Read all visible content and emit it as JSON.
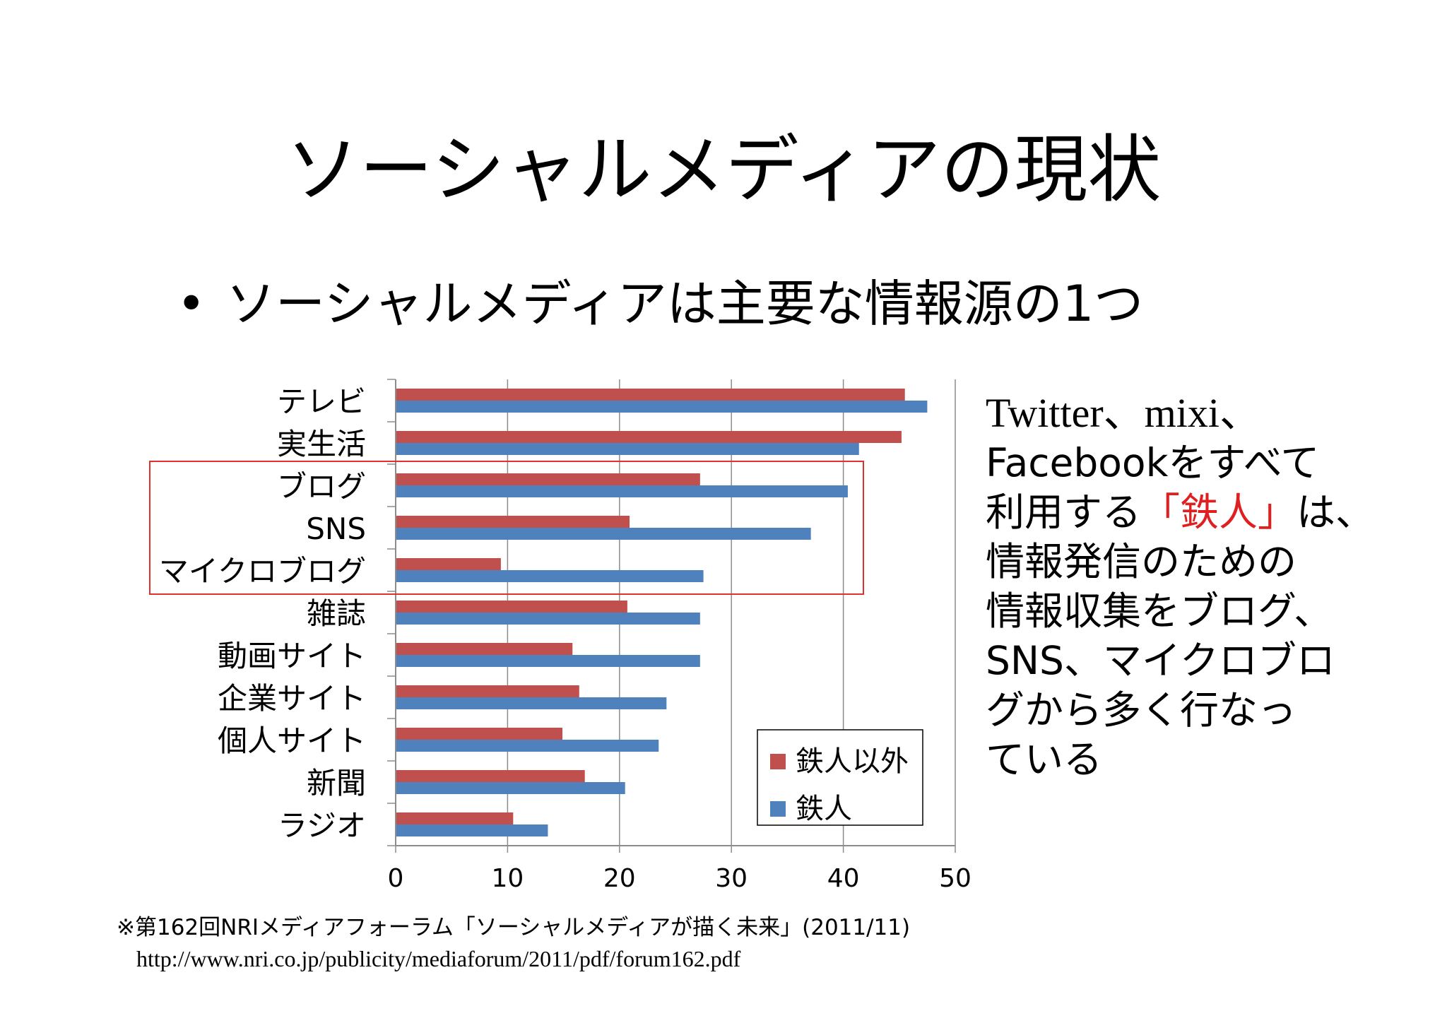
{
  "slide": {
    "title": "ソーシャルメディアの現状",
    "bullet": "ソーシャルメディアは主要な情報源の1つ",
    "bullet_marker": "•"
  },
  "side_text": {
    "line1": "Twitter、mixi、",
    "line2": "Facebookをすべて",
    "line3_pre": "利用する",
    "line3_accent": "「鉄人」",
    "line3_post": "は、",
    "line4": "情報発信のための",
    "line5": "情報収集をブログ、",
    "line6": "SNS、マイクロブロ",
    "line7": "グから多く行なっ",
    "line8": "ている",
    "accent_color": "#e02020"
  },
  "source": {
    "line1": "※第162回NRIメディアフォーラム「ソーシャルメディアが描く未来」(2011/11)",
    "line2": "http://www.nri.co.jp/publicity/mediaforum/2011/pdf/forum162.pdf"
  },
  "chart_data": {
    "type": "bar",
    "orientation": "horizontal",
    "categories": [
      "テレビ",
      "実生活",
      "ブログ",
      "SNS",
      "マイクロブログ",
      "雑誌",
      "動画サイト",
      "企業サイト",
      "個人サイト",
      "新聞",
      "ラジオ"
    ],
    "series": [
      {
        "name": "鉄人以外",
        "color": "#c0504d",
        "values": [
          45.5,
          45.2,
          27.2,
          20.9,
          9.4,
          20.7,
          15.8,
          16.4,
          14.9,
          16.9,
          10.5
        ]
      },
      {
        "name": "鉄人",
        "color": "#4f81bd",
        "values": [
          47.5,
          41.4,
          40.4,
          37.1,
          27.5,
          27.2,
          27.2,
          24.2,
          23.5,
          20.5,
          13.6
        ]
      }
    ],
    "xlim": [
      0,
      50
    ],
    "xticks": [
      0,
      10,
      20,
      30,
      40,
      50
    ],
    "grid": true,
    "legend_position": "bottom-right",
    "highlight": {
      "categories": [
        "ブログ",
        "SNS",
        "マイクロブログ"
      ],
      "color": "#e03030"
    }
  }
}
